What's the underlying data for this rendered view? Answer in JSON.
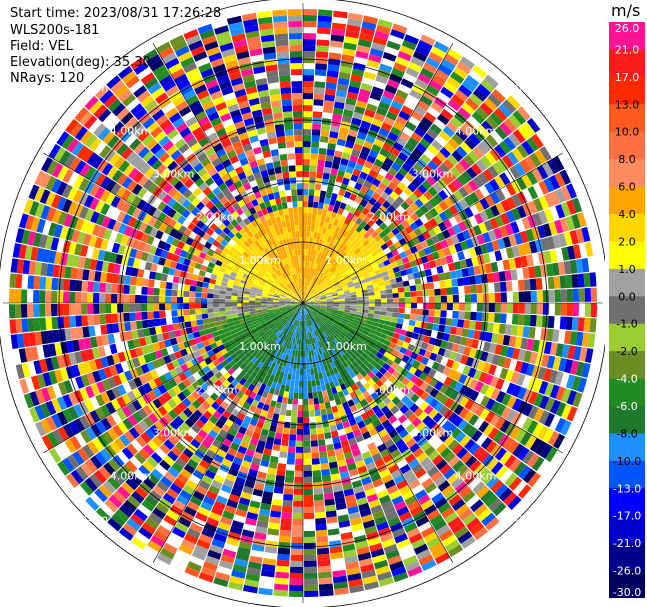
{
  "header": {
    "start_time": "Start time: 2023/08/31 17:26:28",
    "instrument": "WLS200s-181",
    "field": "Field: VEL",
    "elevation": "Elevation(deg): 35.30",
    "nrays": "NRays: 120"
  },
  "colorbar": {
    "title": "m/s",
    "ticks": [
      "26.0",
      "21.0",
      "17.0",
      "13.0",
      "10.0",
      "8.0",
      "6.0",
      "4.0",
      "2.0",
      "1.0",
      "0.0",
      "-1.0",
      "-2.0",
      "-4.0",
      "-6.0",
      "-8.0",
      "-10.0",
      "-13.0",
      "-17.0",
      "-21.0",
      "-26.0",
      "-30.0"
    ],
    "colors": [
      "#ff1493",
      "#ff1a1a",
      "#ff2a00",
      "#ff5a1f",
      "#ff7043",
      "#ff8c60",
      "#ffa500",
      "#ffd700",
      "#ffff00",
      "#a0a0a0",
      "#707070",
      "#9acd32",
      "#6b8e23",
      "#228b22",
      "#1f7a2e",
      "#1e90ff",
      "#0055ff",
      "#0000ff",
      "#0000cd",
      "#00008b",
      "#000060"
    ]
  },
  "range_rings": [
    {
      "label": "1.00km"
    },
    {
      "label": "2.00km"
    },
    {
      "label": "3.00km"
    },
    {
      "label": "4.00km"
    },
    {
      "label": "5.00km"
    }
  ],
  "chart_data": {
    "type": "ppi",
    "field": "VEL",
    "units": "m/s",
    "nrays": 120,
    "elevation_deg": 35.3,
    "range_rings_km": [
      1,
      2,
      3,
      4,
      5
    ],
    "clean_data_radius_km": 1.5,
    "velocity_pattern": {
      "north_sector": "positive 2 to 6 m/s (yellow/orange)",
      "east_sector": "near 0 m/s (gray)",
      "south_sector": "negative -4 to -10 m/s (green/blue)",
      "west_sector": "mixed gray/yellow"
    },
    "colorbar_range": [
      -30,
      26
    ]
  }
}
